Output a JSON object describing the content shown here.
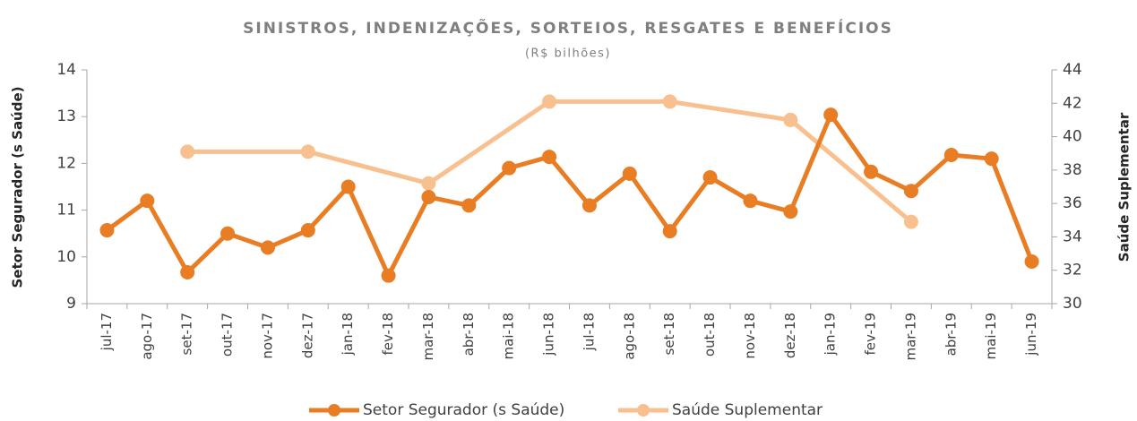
{
  "chart_data": {
    "type": "line",
    "title": "SINISTROS, INDENIZAÇÕES, SORTEIOS, RESGATES E BENEFÍCIOS",
    "subtitle": "(R$ bilhões)",
    "y_label": "Setor Segurador (s Saúde)",
    "y2_label": "Saúde Suplementar",
    "categories": [
      "jul-17",
      "ago-17",
      "set-17",
      "out-17",
      "nov-17",
      "dez-17",
      "jan-18",
      "fev-18",
      "mar-18",
      "abr-18",
      "mai-18",
      "jun-18",
      "jul-18",
      "ago-18",
      "set-18",
      "out-18",
      "nov-18",
      "dez-18",
      "jan-19",
      "fev-19",
      "mar-19",
      "abr-19",
      "mai-19",
      "jun-19"
    ],
    "series": [
      {
        "name": "Setor Segurador (s Saúde)",
        "color": "#e97d23",
        "values": [
          10.57,
          11.2,
          9.67,
          10.5,
          10.2,
          10.57,
          11.5,
          9.6,
          11.28,
          11.1,
          11.9,
          12.14,
          11.1,
          11.78,
          10.55,
          11.7,
          11.2,
          10.97,
          13.04,
          11.82,
          11.41,
          12.18,
          12.1,
          9.9
        ]
      },
      {
        "name": "Saúde Suplementar",
        "color": "#f9c08f",
        "axis": "y2",
        "connect_gaps": true,
        "values": [
          null,
          null,
          39.1,
          null,
          null,
          39.1,
          null,
          null,
          37.2,
          null,
          null,
          42.1,
          null,
          null,
          42.1,
          null,
          null,
          41.0,
          null,
          null,
          34.9,
          null,
          null,
          null
        ]
      }
    ],
    "ylim": [
      9,
      14
    ],
    "yticks": [
      9,
      10,
      11,
      12,
      13,
      14
    ],
    "y2lim": [
      30,
      44
    ],
    "y2ticks": [
      30,
      32,
      34,
      36,
      38,
      40,
      42,
      44
    ],
    "grid": false,
    "legend": "bottom"
  }
}
